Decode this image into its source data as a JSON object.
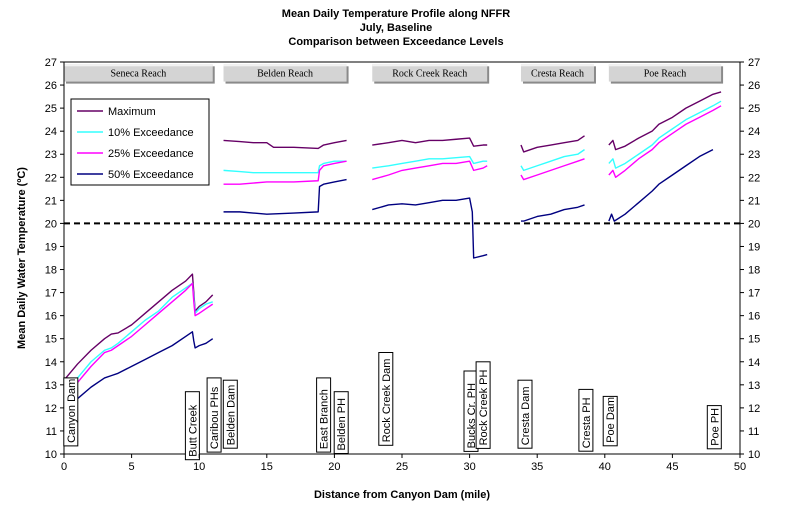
{
  "chart_data": {
    "type": "line",
    "title": [
      "Mean Daily Temperature Profile along NFFR",
      "July, Baseline",
      "Comparison between Exceedance Levels"
    ],
    "xlabel": "Distance from Canyon Dam (mile)",
    "ylabel": "Mean Daily Water Temperature (ºC)",
    "xlim": [
      0,
      50
    ],
    "ylim": [
      10,
      27
    ],
    "xticks": [
      0,
      5,
      10,
      15,
      20,
      25,
      30,
      35,
      40,
      45,
      50
    ],
    "yticks": [
      10,
      11,
      12,
      13,
      14,
      15,
      16,
      17,
      18,
      19,
      20,
      21,
      22,
      23,
      24,
      25,
      26,
      27
    ],
    "grid": false,
    "legend_position": "top-left",
    "threshold": 20,
    "reaches": [
      {
        "name": "Seneca Reach",
        "x_start": 0,
        "x_end": 11
      },
      {
        "name": "Belden Reach",
        "x_start": 11.8,
        "x_end": 20.9
      },
      {
        "name": "Rock Creek Reach",
        "x_start": 22.8,
        "x_end": 31.3
      },
      {
        "name": "Cresta Reach",
        "x_start": 33.8,
        "x_end": 39.2
      },
      {
        "name": "Poe Reach",
        "x_start": 40.3,
        "x_end": 48.6
      }
    ],
    "locations": [
      {
        "name": "Canyon Dam",
        "x": 0.5,
        "y_top": 13.3
      },
      {
        "name": "Butt Creek",
        "x": 9.5,
        "y_top": 12.7
      },
      {
        "name": "Caribou PHs",
        "x": 11.1,
        "y_top": 13.3
      },
      {
        "name": "Belden Dam",
        "x": 12.3,
        "y_top": 13.2
      },
      {
        "name": "East Branch",
        "x": 19.2,
        "y_top": 13.3
      },
      {
        "name": "Belden PH",
        "x": 20.5,
        "y_top": 12.7
      },
      {
        "name": "Rock Creek Dam",
        "x": 23.8,
        "y_top": 14.4
      },
      {
        "name": "Bucks Cr. PH",
        "x": 30.1,
        "y_top": 13.6
      },
      {
        "name": "Rock Creek PH",
        "x": 31.0,
        "y_top": 14.0
      },
      {
        "name": "Cresta Dam",
        "x": 34.1,
        "y_top": 13.2
      },
      {
        "name": "Cresta PH",
        "x": 38.6,
        "y_top": 12.8
      },
      {
        "name": "Poe Dam",
        "x": 40.4,
        "y_top": 12.5
      },
      {
        "name": "Poe PH",
        "x": 48.1,
        "y_top": 12.1
      }
    ],
    "series": [
      {
        "name": "Maximum",
        "color": "#660066",
        "segments": [
          [
            [
              0,
              13.2
            ],
            [
              1,
              13.9
            ],
            [
              2,
              14.5
            ],
            [
              3,
              15.0
            ],
            [
              3.5,
              15.2
            ],
            [
              4,
              15.25
            ],
            [
              5,
              15.6
            ],
            [
              6,
              16.1
            ],
            [
              7,
              16.6
            ],
            [
              8,
              17.1
            ],
            [
              9,
              17.5
            ],
            [
              9.5,
              17.8
            ],
            [
              9.6,
              17.0
            ],
            [
              9.7,
              16.2
            ],
            [
              10,
              16.4
            ],
            [
              10.5,
              16.6
            ],
            [
              11,
              16.9
            ]
          ],
          [
            [
              11.8,
              23.6
            ],
            [
              13,
              23.55
            ],
            [
              14,
              23.5
            ],
            [
              15,
              23.5
            ],
            [
              15.5,
              23.3
            ],
            [
              17,
              23.3
            ],
            [
              18.8,
              23.25
            ],
            [
              19.2,
              23.4
            ],
            [
              20,
              23.5
            ],
            [
              20.9,
              23.6
            ]
          ],
          [
            [
              22.8,
              23.4
            ],
            [
              24,
              23.5
            ],
            [
              25,
              23.6
            ],
            [
              26,
              23.5
            ],
            [
              27,
              23.6
            ],
            [
              28,
              23.6
            ],
            [
              29,
              23.65
            ],
            [
              30,
              23.7
            ],
            [
              30.3,
              23.35
            ],
            [
              31,
              23.4
            ],
            [
              31.3,
              23.4
            ]
          ],
          [
            [
              33.8,
              23.4
            ],
            [
              34,
              23.1
            ],
            [
              35,
              23.3
            ],
            [
              36,
              23.4
            ],
            [
              37,
              23.5
            ],
            [
              38,
              23.6
            ],
            [
              38.5,
              23.8
            ]
          ],
          [
            [
              40.3,
              23.4
            ],
            [
              40.6,
              23.6
            ],
            [
              40.8,
              23.2
            ],
            [
              41.5,
              23.35
            ],
            [
              42.5,
              23.7
            ],
            [
              43.5,
              24.0
            ],
            [
              44,
              24.3
            ],
            [
              45,
              24.6
            ],
            [
              46,
              25.0
            ],
            [
              47,
              25.3
            ],
            [
              48,
              25.6
            ],
            [
              48.6,
              25.7
            ]
          ]
        ]
      },
      {
        "name": "10% Exceedance",
        "color": "#33ffff",
        "segments": [
          [
            [
              0,
              12.6
            ],
            [
              1,
              13.3
            ],
            [
              2,
              14.0
            ],
            [
              3,
              14.5
            ],
            [
              3.5,
              14.6
            ],
            [
              4,
              14.8
            ],
            [
              5,
              15.3
            ],
            [
              6,
              15.8
            ],
            [
              7,
              16.2
            ],
            [
              8,
              16.8
            ],
            [
              9,
              17.2
            ],
            [
              9.5,
              17.4
            ],
            [
              9.6,
              16.8
            ],
            [
              9.7,
              16.1
            ],
            [
              10,
              16.3
            ],
            [
              10.5,
              16.5
            ],
            [
              11,
              16.6
            ]
          ],
          [
            [
              11.8,
              22.3
            ],
            [
              13,
              22.25
            ],
            [
              14,
              22.2
            ],
            [
              15,
              22.2
            ],
            [
              17,
              22.2
            ],
            [
              18.8,
              22.2
            ],
            [
              18.9,
              22.5
            ],
            [
              19.2,
              22.6
            ],
            [
              20,
              22.7
            ],
            [
              20.9,
              22.7
            ]
          ],
          [
            [
              22.8,
              22.4
            ],
            [
              24,
              22.5
            ],
            [
              25,
              22.6
            ],
            [
              26,
              22.7
            ],
            [
              27,
              22.8
            ],
            [
              28,
              22.8
            ],
            [
              29,
              22.85
            ],
            [
              30,
              22.9
            ],
            [
              30.3,
              22.6
            ],
            [
              31,
              22.7
            ],
            [
              31.3,
              22.7
            ]
          ],
          [
            [
              33.8,
              22.5
            ],
            [
              34,
              22.3
            ],
            [
              35,
              22.5
            ],
            [
              36,
              22.7
            ],
            [
              37,
              22.9
            ],
            [
              38,
              23.0
            ],
            [
              38.5,
              23.2
            ]
          ],
          [
            [
              40.3,
              22.6
            ],
            [
              40.6,
              22.8
            ],
            [
              40.8,
              22.4
            ],
            [
              41.5,
              22.6
            ],
            [
              42.5,
              23.0
            ],
            [
              43.5,
              23.4
            ],
            [
              44,
              23.7
            ],
            [
              45,
              24.1
            ],
            [
              46,
              24.5
            ],
            [
              47,
              24.8
            ],
            [
              48,
              25.1
            ],
            [
              48.6,
              25.3
            ]
          ]
        ]
      },
      {
        "name": "25% Exceedance",
        "color": "#ff00ff",
        "segments": [
          [
            [
              0,
              12.3
            ],
            [
              1,
              13.1
            ],
            [
              2,
              13.8
            ],
            [
              3,
              14.4
            ],
            [
              3.5,
              14.5
            ],
            [
              4,
              14.7
            ],
            [
              5,
              15.1
            ],
            [
              6,
              15.6
            ],
            [
              7,
              16.1
            ],
            [
              8,
              16.6
            ],
            [
              9,
              17.1
            ],
            [
              9.5,
              17.4
            ],
            [
              9.6,
              16.6
            ],
            [
              9.7,
              16.0
            ],
            [
              10,
              16.1
            ],
            [
              10.5,
              16.3
            ],
            [
              11,
              16.5
            ]
          ],
          [
            [
              11.8,
              21.7
            ],
            [
              13,
              21.7
            ],
            [
              14,
              21.75
            ],
            [
              15,
              21.8
            ],
            [
              17,
              21.8
            ],
            [
              18.8,
              21.85
            ],
            [
              18.9,
              22.3
            ],
            [
              19.2,
              22.5
            ],
            [
              20,
              22.6
            ],
            [
              20.9,
              22.7
            ]
          ],
          [
            [
              22.8,
              21.9
            ],
            [
              24,
              22.1
            ],
            [
              25,
              22.3
            ],
            [
              26,
              22.4
            ],
            [
              27,
              22.5
            ],
            [
              28,
              22.6
            ],
            [
              29,
              22.6
            ],
            [
              30,
              22.7
            ],
            [
              30.3,
              22.3
            ],
            [
              31,
              22.4
            ],
            [
              31.3,
              22.5
            ]
          ],
          [
            [
              33.8,
              22.1
            ],
            [
              34,
              21.9
            ],
            [
              35,
              22.1
            ],
            [
              36,
              22.3
            ],
            [
              37,
              22.5
            ],
            [
              38,
              22.7
            ],
            [
              38.5,
              22.8
            ]
          ],
          [
            [
              40.3,
              22.1
            ],
            [
              40.6,
              22.3
            ],
            [
              40.8,
              22.0
            ],
            [
              41.5,
              22.3
            ],
            [
              42.5,
              22.8
            ],
            [
              43.5,
              23.2
            ],
            [
              44,
              23.5
            ],
            [
              45,
              23.9
            ],
            [
              46,
              24.3
            ],
            [
              47,
              24.6
            ],
            [
              48,
              24.9
            ],
            [
              48.6,
              25.1
            ]
          ]
        ]
      },
      {
        "name": "50% Exceedance",
        "color": "#000080",
        "segments": [
          [
            [
              0,
              11.9
            ],
            [
              1,
              12.4
            ],
            [
              2,
              12.9
            ],
            [
              3,
              13.3
            ],
            [
              3.5,
              13.4
            ],
            [
              4,
              13.5
            ],
            [
              5,
              13.8
            ],
            [
              6,
              14.1
            ],
            [
              7,
              14.4
            ],
            [
              8,
              14.7
            ],
            [
              9,
              15.1
            ],
            [
              9.5,
              15.3
            ],
            [
              9.6,
              14.9
            ],
            [
              9.7,
              14.6
            ],
            [
              10,
              14.7
            ],
            [
              10.5,
              14.8
            ],
            [
              11,
              15.0
            ]
          ],
          [
            [
              11.8,
              20.5
            ],
            [
              13,
              20.5
            ],
            [
              14,
              20.45
            ],
            [
              15,
              20.4
            ],
            [
              17,
              20.45
            ],
            [
              18.8,
              20.5
            ],
            [
              18.9,
              21.6
            ],
            [
              19.2,
              21.7
            ],
            [
              20,
              21.8
            ],
            [
              20.9,
              21.9
            ]
          ],
          [
            [
              22.8,
              20.6
            ],
            [
              24,
              20.8
            ],
            [
              25,
              20.85
            ],
            [
              26,
              20.8
            ],
            [
              27,
              20.9
            ],
            [
              28,
              21.0
            ],
            [
              29,
              21.0
            ],
            [
              30,
              21.1
            ],
            [
              30.2,
              20.5
            ],
            [
              30.3,
              18.5
            ],
            [
              31,
              18.6
            ],
            [
              31.3,
              18.65
            ]
          ],
          [
            [
              33.8,
              20.1
            ],
            [
              34,
              20.1
            ],
            [
              35,
              20.3
            ],
            [
              36,
              20.4
            ],
            [
              37,
              20.6
            ],
            [
              38,
              20.7
            ],
            [
              38.5,
              20.8
            ]
          ],
          [
            [
              40.3,
              20.1
            ],
            [
              40.5,
              20.4
            ],
            [
              40.7,
              20.1
            ],
            [
              41.5,
              20.4
            ],
            [
              42.5,
              20.9
            ],
            [
              43.5,
              21.4
            ],
            [
              44,
              21.7
            ],
            [
              45,
              22.1
            ],
            [
              46,
              22.5
            ],
            [
              47,
              22.9
            ],
            [
              48,
              23.2
            ]
          ]
        ]
      }
    ]
  }
}
